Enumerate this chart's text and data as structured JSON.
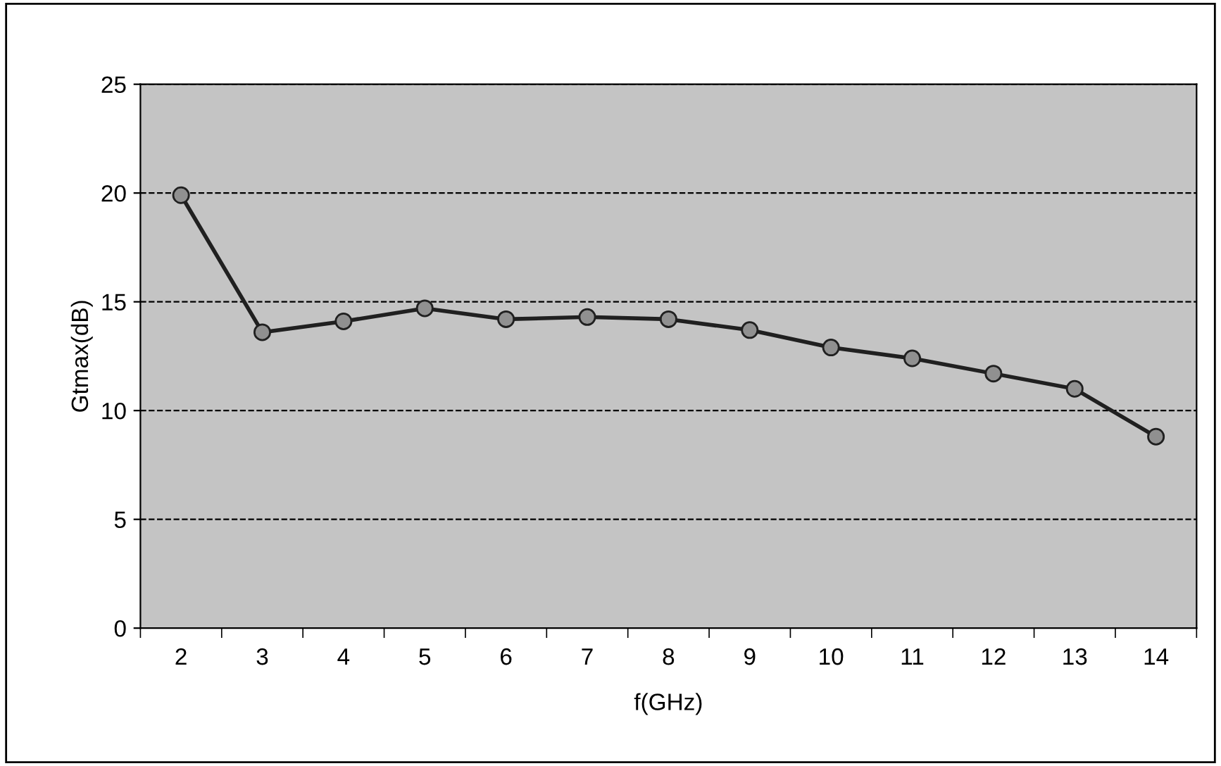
{
  "chart_data": {
    "type": "line",
    "xlabel": "f(GHz)",
    "ylabel": "Gtmax(dB)",
    "categories": [
      "2",
      "3",
      "4",
      "5",
      "6",
      "7",
      "8",
      "9",
      "10",
      "11",
      "12",
      "13",
      "14"
    ],
    "series": [
      {
        "color": "#202020",
        "values": [
          19.9,
          13.6,
          14.1,
          14.7,
          14.2,
          14.3,
          14.2,
          13.7,
          12.9,
          12.4,
          11.7,
          11.0,
          8.8
        ]
      }
    ],
    "ylim": [
      0,
      25
    ],
    "yticks": [
      0,
      5,
      10,
      15,
      20,
      25
    ],
    "grid": "y",
    "marker": "circle",
    "line_style": "solid",
    "legend": false
  }
}
